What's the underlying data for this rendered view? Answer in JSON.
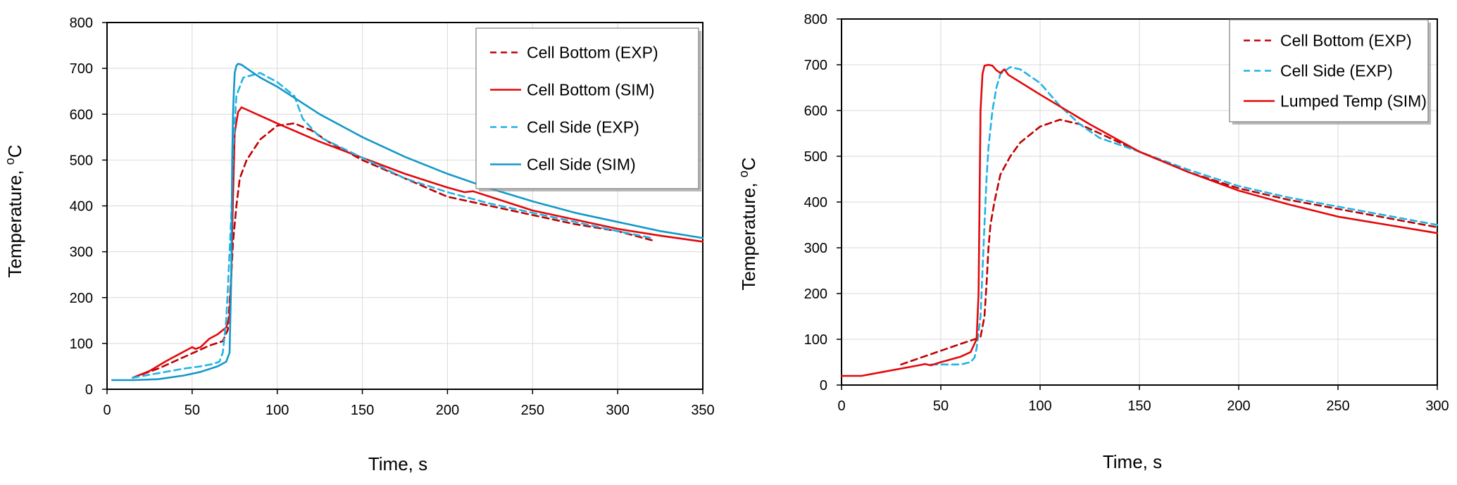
{
  "colors": {
    "dark_red": "#C00000",
    "red": "#E3080B",
    "light_blue": "#1FB4E6",
    "blue": "#1399C8",
    "grid": "#D9D9D9",
    "axis": "#000000"
  },
  "chart_data": [
    {
      "type": "line",
      "title": "",
      "xlabel": "Time, s",
      "ylabel": "Temperature, ",
      "ylabel_superscript": "o",
      "ylabel_unit": "C",
      "xlim": [
        0,
        350
      ],
      "ylim": [
        0,
        800
      ],
      "xticks": [
        0,
        50,
        100,
        150,
        200,
        250,
        300,
        350
      ],
      "yticks": [
        0,
        100,
        200,
        300,
        400,
        500,
        600,
        700,
        800
      ],
      "grid": true,
      "legend_position": "top-right",
      "series": [
        {
          "name": "Cell Bottom (EXP)",
          "color": "#C00000",
          "dash": "dashed",
          "x": [
            15,
            30,
            45,
            60,
            68,
            71,
            73,
            74,
            76,
            78,
            82,
            90,
            100,
            110,
            120,
            130,
            150,
            175,
            200,
            225,
            250,
            275,
            300,
            320
          ],
          "y": [
            25,
            45,
            70,
            95,
            105,
            130,
            250,
            320,
            400,
            460,
            500,
            545,
            575,
            580,
            565,
            540,
            500,
            460,
            420,
            400,
            380,
            360,
            345,
            325
          ]
        },
        {
          "name": "Cell Bottom (SIM)",
          "color": "#E3080B",
          "dash": "solid",
          "x": [
            15,
            25,
            35,
            45,
            50,
            52,
            55,
            60,
            65,
            70,
            72,
            73,
            74,
            75,
            77,
            79,
            85,
            100,
            125,
            150,
            175,
            200,
            210,
            215,
            225,
            250,
            275,
            300,
            325,
            350
          ],
          "y": [
            25,
            40,
            62,
            82,
            92,
            88,
            92,
            110,
            120,
            135,
            160,
            250,
            420,
            560,
            605,
            615,
            605,
            580,
            540,
            505,
            470,
            440,
            430,
            432,
            420,
            390,
            370,
            350,
            335,
            322
          ]
        },
        {
          "name": "Cell Side (EXP)",
          "color": "#1FB4E6",
          "dash": "dashed",
          "x": [
            15,
            30,
            45,
            55,
            62,
            66,
            68,
            70,
            71,
            72,
            73,
            74,
            76,
            80,
            90,
            100,
            110,
            115,
            125,
            150,
            175,
            200,
            225,
            250,
            275,
            300,
            320
          ],
          "y": [
            25,
            35,
            45,
            50,
            55,
            60,
            80,
            150,
            220,
            300,
            380,
            520,
            640,
            680,
            690,
            670,
            640,
            590,
            550,
            505,
            460,
            430,
            405,
            385,
            365,
            345,
            330
          ]
        },
        {
          "name": "Cell Side (SIM)",
          "color": "#1399C8",
          "dash": "solid",
          "x": [
            3,
            15,
            30,
            45,
            55,
            65,
            70,
            72,
            73,
            73.5,
            74,
            74.5,
            75,
            76,
            77,
            79,
            82,
            90,
            100,
            125,
            150,
            175,
            200,
            225,
            250,
            275,
            300,
            325,
            350
          ],
          "y": [
            20,
            20,
            22,
            30,
            38,
            50,
            60,
            80,
            250,
            500,
            600,
            650,
            690,
            706,
            710,
            708,
            700,
            680,
            660,
            600,
            550,
            507,
            470,
            438,
            410,
            385,
            365,
            345,
            330
          ]
        }
      ]
    },
    {
      "type": "line",
      "title": "",
      "xlabel": "Time, s",
      "ylabel": "Temperature, ",
      "ylabel_superscript": "o",
      "ylabel_unit": "C",
      "xlim": [
        0,
        300
      ],
      "ylim": [
        0,
        800
      ],
      "xticks": [
        0,
        50,
        100,
        150,
        200,
        250,
        300
      ],
      "yticks": [
        0,
        100,
        200,
        300,
        400,
        500,
        600,
        700,
        800
      ],
      "grid": true,
      "legend_position": "top-right",
      "series": [
        {
          "name": "Cell Bottom (EXP)",
          "color": "#C00000",
          "dash": "dashed",
          "x": [
            30,
            40,
            50,
            60,
            67,
            70,
            72,
            73,
            74,
            75,
            77,
            80,
            85,
            90,
            100,
            110,
            120,
            130,
            150,
            175,
            200,
            225,
            250,
            275,
            300
          ],
          "y": [
            45,
            60,
            75,
            90,
            100,
            105,
            150,
            220,
            300,
            350,
            400,
            460,
            500,
            530,
            565,
            580,
            570,
            550,
            510,
            465,
            430,
            405,
            385,
            365,
            345
          ]
        },
        {
          "name": "Cell Side (EXP)",
          "color": "#1FB4E6",
          "dash": "dashed",
          "x": [
            45,
            55,
            60,
            65,
            67,
            68,
            70,
            71,
            72,
            73,
            74,
            76,
            78,
            80,
            85,
            90,
            100,
            110,
            120,
            130,
            150,
            175,
            200,
            225,
            250,
            275,
            300
          ],
          "y": [
            45,
            45,
            45,
            50,
            60,
            80,
            150,
            250,
            350,
            450,
            520,
            600,
            650,
            680,
            695,
            690,
            660,
            610,
            570,
            540,
            510,
            470,
            435,
            410,
            390,
            370,
            350
          ]
        },
        {
          "name": "Lumped Temp (SIM)",
          "color": "#E3080B",
          "dash": "solid",
          "x": [
            0,
            10,
            20,
            30,
            40,
            42,
            45,
            50,
            55,
            60,
            65,
            68,
            69,
            69.5,
            70,
            71,
            72,
            74,
            76,
            78,
            80,
            82,
            84,
            100,
            125,
            150,
            175,
            200,
            225,
            250,
            275,
            300
          ],
          "y": [
            20,
            20,
            28,
            36,
            44,
            46,
            43,
            50,
            56,
            62,
            72,
            100,
            200,
            400,
            600,
            680,
            698,
            700,
            698,
            688,
            682,
            690,
            678,
            635,
            570,
            510,
            465,
            425,
            395,
            368,
            350,
            332
          ]
        }
      ]
    }
  ]
}
